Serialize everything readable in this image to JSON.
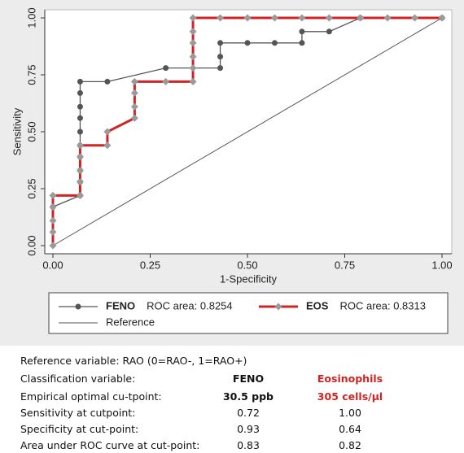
{
  "chart_data": {
    "type": "line",
    "xlabel": "1-Specificity",
    "ylabel": "Sensitivity",
    "xlim": [
      0,
      1
    ],
    "ylim": [
      0,
      1
    ],
    "xticks": [
      {
        "value": 0,
        "label": "0.00"
      },
      {
        "value": 0.25,
        "label": "0.25"
      },
      {
        "value": 0.5,
        "label": "0.50"
      },
      {
        "value": 0.75,
        "label": "0.75"
      },
      {
        "value": 1,
        "label": "1.00"
      }
    ],
    "yticks": [
      {
        "value": 0,
        "label": "0.00"
      },
      {
        "value": 0.25,
        "label": "0.25"
      },
      {
        "value": 0.5,
        "label": "0.50"
      },
      {
        "value": 0.75,
        "label": "0.75"
      },
      {
        "value": 1,
        "label": "1.00"
      }
    ],
    "series": [
      {
        "name": "FENO",
        "roc_area_label": "ROC area: 0.8254",
        "color": "#555555",
        "marker": "circle",
        "marker_color": "#555555",
        "x": [
          0,
          0.07,
          0.07,
          0.07,
          0.07,
          0.07,
          0.07,
          0.07,
          0.07,
          0.07,
          0.07,
          0.14,
          0.29,
          0.43,
          0.43,
          0.43,
          0.5,
          0.57,
          0.64,
          0.64,
          0.71,
          0.79,
          1
        ],
        "values": [
          0.17,
          0.22,
          0.28,
          0.33,
          0.39,
          0.44,
          0.5,
          0.56,
          0.61,
          0.67,
          0.72,
          0.72,
          0.78,
          0.78,
          0.83,
          0.89,
          0.89,
          0.89,
          0.89,
          0.94,
          0.94,
          1,
          1
        ]
      },
      {
        "name": "EOS",
        "roc_area_label": "ROC area: 0.8313",
        "color": "#d02424",
        "marker": "diamond",
        "marker_color": "#9a9a9a",
        "x": [
          0,
          0,
          0,
          0,
          0,
          0.07,
          0.07,
          0.07,
          0.07,
          0.07,
          0.14,
          0.14,
          0.21,
          0.21,
          0.21,
          0.21,
          0.29,
          0.36,
          0.36,
          0.36,
          0.36,
          0.36,
          0.36,
          0.43,
          0.5,
          0.57,
          0.64,
          0.71,
          0.79,
          0.86,
          0.93,
          1
        ],
        "values": [
          0,
          0.06,
          0.11,
          0.17,
          0.22,
          0.22,
          0.28,
          0.33,
          0.39,
          0.44,
          0.44,
          0.5,
          0.56,
          0.61,
          0.67,
          0.72,
          0.72,
          0.72,
          0.78,
          0.83,
          0.89,
          0.94,
          1,
          1,
          1,
          1,
          1,
          1,
          1,
          1,
          1,
          1
        ]
      },
      {
        "name": "Reference",
        "color": "#555555",
        "x": [
          0,
          1
        ],
        "values": [
          0,
          1
        ]
      }
    ]
  },
  "table": {
    "rows": [
      [
        "Reference variable:  RAO (0=RAO-, 1=RAO+)"
      ],
      [
        "Classification variable:",
        "FENO",
        "Eosinophils"
      ],
      [
        "Empirical optimal cu-tpoint:",
        "30.5 ppb",
        "305 cells/µl"
      ],
      [
        "Sensitivity at cutpoint:",
        "0.72",
        "1.00"
      ],
      [
        "Specificity at cut-point:",
        "0.93",
        "0.64"
      ],
      [
        "Area under ROC curve at cut-point:",
        "0.83",
        "0.82"
      ]
    ]
  }
}
